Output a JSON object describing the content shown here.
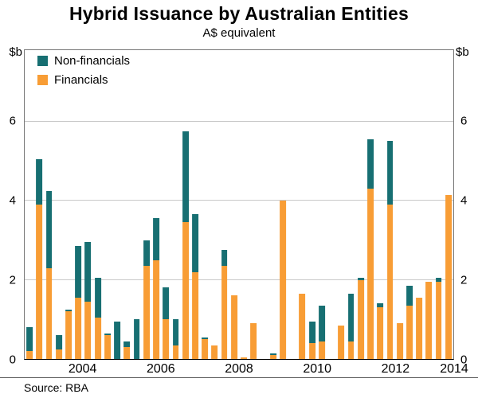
{
  "page": {
    "title": "Hybrid Issuance by Australian Entities",
    "subtitle": "A$ equivalent",
    "y_unit_left": "$b",
    "y_unit_right": "$b",
    "source": "Source: RBA"
  },
  "legend": [
    {
      "label": "Non-financials",
      "color": "#176f72"
    },
    {
      "label": "Financials",
      "color": "#f89d35"
    }
  ],
  "chart_data": {
    "type": "bar",
    "stacked": true,
    "title": "Hybrid Issuance by Australian Entities",
    "subtitle": "A$ equivalent",
    "ylabel": "$b",
    "ylim": [
      0,
      7.8
    ],
    "yticks": [
      0,
      2,
      4,
      6
    ],
    "grid": true,
    "legend_position": "top-left",
    "xticklabels": [
      "2004",
      "2006",
      "2008",
      "2010",
      "2012",
      "2014"
    ],
    "x": [
      "2003Q1",
      "2003Q2",
      "2003Q3",
      "2003Q4",
      "2004Q1",
      "2004Q2",
      "2004Q3",
      "2004Q4",
      "2005Q1",
      "2005Q2",
      "2005Q3",
      "2005Q4",
      "2006Q1",
      "2006Q2",
      "2006Q3",
      "2006Q4",
      "2007Q1",
      "2007Q2",
      "2007Q3",
      "2007Q4",
      "2008Q1",
      "2008Q2",
      "2008Q3",
      "2008Q4",
      "2009Q1",
      "2009Q2",
      "2009Q3",
      "2009Q4",
      "2010Q1",
      "2010Q2",
      "2010Q3",
      "2010Q4",
      "2011Q1",
      "2011Q2",
      "2011Q3",
      "2011Q4",
      "2012Q1",
      "2012Q2",
      "2012Q3",
      "2012Q4",
      "2013Q1",
      "2013Q2",
      "2013Q3",
      "2013Q4"
    ],
    "series": [
      {
        "name": "Financials",
        "color": "#f89d35",
        "values": [
          0.2,
          3.9,
          2.3,
          0.25,
          1.2,
          1.55,
          1.45,
          1.05,
          0.6,
          0.0,
          0.3,
          0.0,
          2.35,
          2.5,
          1.0,
          0.35,
          3.45,
          2.2,
          0.5,
          0.35,
          2.35,
          1.6,
          0.05,
          0.9,
          0.0,
          0.1,
          4.0,
          0.0,
          1.65,
          0.4,
          0.45,
          0.0,
          0.85,
          0.45,
          2.0,
          4.3,
          1.3,
          3.9,
          0.9,
          1.35,
          1.55,
          1.95,
          1.95,
          4.15
        ]
      },
      {
        "name": "Non-financials",
        "color": "#176f72",
        "values": [
          0.6,
          1.15,
          1.95,
          0.35,
          0.05,
          1.3,
          1.5,
          1.0,
          0.05,
          0.95,
          0.15,
          1.0,
          0.65,
          1.05,
          0.8,
          0.65,
          2.3,
          1.45,
          0.05,
          0.0,
          0.4,
          0.0,
          0.0,
          0.0,
          0.0,
          0.05,
          0.0,
          0.0,
          0.0,
          0.55,
          0.9,
          0.0,
          0.0,
          1.2,
          0.05,
          1.25,
          0.1,
          1.6,
          0.0,
          0.5,
          0.0,
          0.0,
          0.1,
          0.0
        ]
      }
    ],
    "x_axis_start_year": 2003,
    "x_axis_end_year": 2014
  }
}
